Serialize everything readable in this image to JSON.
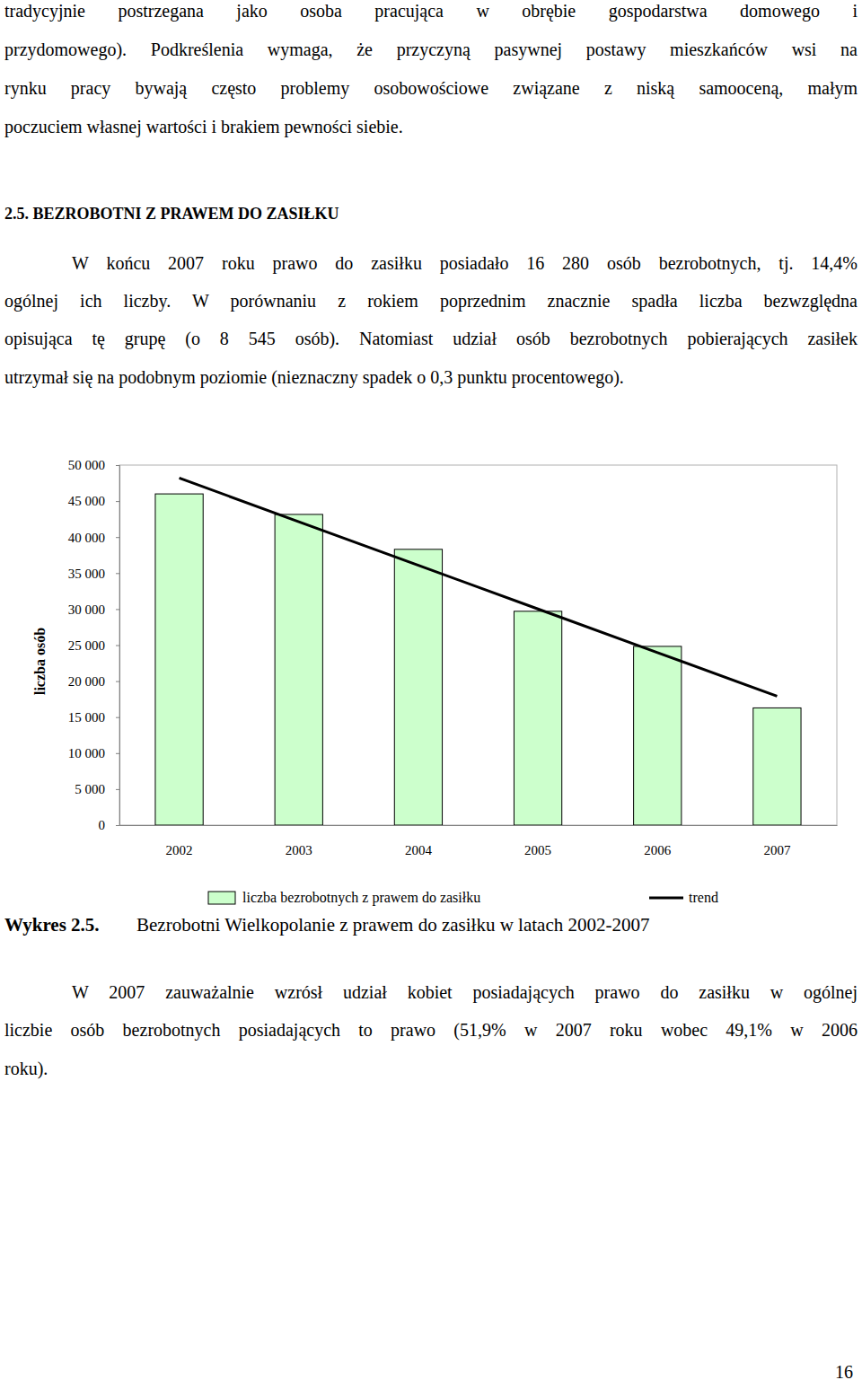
{
  "intro": {
    "lines": [
      "tradycyjnie postrzegana jako osoba pracująca w obrębie gospodarstwa domowego i",
      "przydomowego). Podkreślenia wymaga, że przyczyną pasywnej postawy mieszkańców wsi na",
      "rynku pracy bywają często problemy osobowościowe związane z niską samooceną, małym",
      "poczuciem własnej wartości i brakiem pewności siebie."
    ]
  },
  "heading": "2.5. BEZROBOTNI Z PRAWEM DO ZASIŁKU",
  "paragraph1": {
    "lines": [
      "W końcu 2007 roku prawo do zasiłku posiadało 16 280 osób bezrobotnych, tj. 14,4%",
      "ogólnej ich liczby. W porównaniu z rokiem poprzednim znacznie spadła liczba bezwzględna",
      "opisująca tę grupę (o 8 545 osób). Natomiast udział osób bezrobotnych pobierających zasiłek",
      "utrzymał się na podobnym poziomie (nieznaczny spadek o 0,3 punktu procentowego)."
    ]
  },
  "chart_data": {
    "type": "bar",
    "y_label": "liczba osób",
    "categories": [
      "2002",
      "2003",
      "2004",
      "2005",
      "2006",
      "2007"
    ],
    "series": [
      {
        "name": "liczba bezrobotnych z prawem do zasiłku",
        "type": "bar",
        "color": "#ccffcc",
        "values": [
          46000,
          43150,
          38300,
          29700,
          24825,
          16280
        ]
      },
      {
        "name": "trend",
        "type": "line",
        "color": "#000000",
        "values": [
          48200,
          42140,
          36080,
          30020,
          23960,
          17900
        ]
      }
    ],
    "ylim": [
      0,
      50000
    ],
    "yticks": [
      {
        "value": 0,
        "label": "0"
      },
      {
        "value": 5000,
        "label": "5 000"
      },
      {
        "value": 10000,
        "label": "10 000"
      },
      {
        "value": 15000,
        "label": "15 000"
      },
      {
        "value": 20000,
        "label": "20 000"
      },
      {
        "value": 25000,
        "label": "25 000"
      },
      {
        "value": 30000,
        "label": "30 000"
      },
      {
        "value": 35000,
        "label": "35 000"
      },
      {
        "value": 40000,
        "label": "40 000"
      },
      {
        "value": 45000,
        "label": "45 000"
      },
      {
        "value": 50000,
        "label": "50 000"
      }
    ],
    "legend": "bottom"
  },
  "caption": {
    "label": "Wykres 2.5.",
    "text": "Bezrobotni Wielkopolanie z prawem do zasiłku w latach 2002-2007"
  },
  "paragraph2": {
    "lines": [
      "W 2007 zauważalnie wzrósł udział kobiet posiadających prawo do zasiłku w ogólnej",
      "liczbie osób bezrobotnych posiadających to prawo (51,9% w 2007 roku wobec 49,1% w 2006",
      "roku)."
    ]
  },
  "page_number": "16"
}
